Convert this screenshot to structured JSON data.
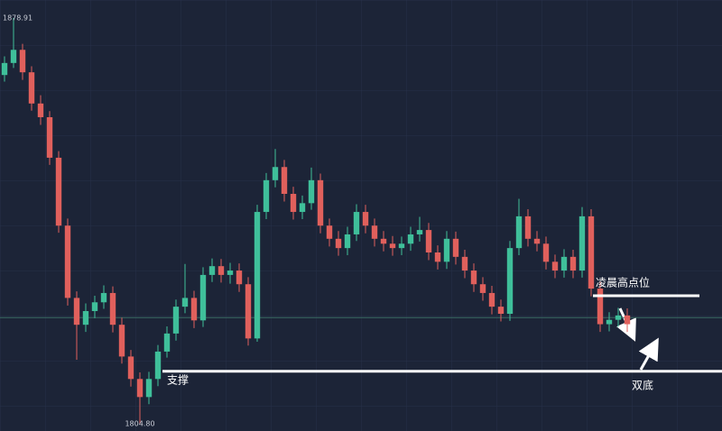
{
  "chart_data": {
    "type": "candlestick",
    "ylim": [
      1803.5,
      1882.2
    ],
    "up_color": "#3fbf9a",
    "down_color": "#e0605c",
    "candles": [
      [
        1868.5,
        1871.9,
        1867.3,
        1870.7
      ],
      [
        1870.7,
        1878.91,
        1869.8,
        1873.1
      ],
      [
        1873.1,
        1874.2,
        1867.6,
        1869.0
      ],
      [
        1869.0,
        1870.1,
        1862.0,
        1863.3
      ],
      [
        1863.3,
        1864.8,
        1859.4,
        1860.8
      ],
      [
        1860.8,
        1861.9,
        1852.1,
        1853.4
      ],
      [
        1853.4,
        1854.6,
        1839.7,
        1841.0
      ],
      [
        1841.0,
        1842.3,
        1826.4,
        1827.8
      ],
      [
        1827.8,
        1829.0,
        1816.5,
        1822.9
      ],
      [
        1822.9,
        1826.8,
        1821.6,
        1825.4
      ],
      [
        1825.4,
        1828.2,
        1824.1,
        1827.0
      ],
      [
        1827.0,
        1830.1,
        1825.8,
        1828.7
      ],
      [
        1828.7,
        1829.9,
        1821.5,
        1822.9
      ],
      [
        1822.9,
        1824.2,
        1815.8,
        1817.1
      ],
      [
        1817.1,
        1818.3,
        1811.6,
        1813.0
      ],
      [
        1813.0,
        1814.2,
        1804.8,
        1809.7
      ],
      [
        1809.7,
        1814.3,
        1808.4,
        1813.0
      ],
      [
        1813.0,
        1819.2,
        1811.7,
        1818.0
      ],
      [
        1818.0,
        1822.6,
        1816.9,
        1821.3
      ],
      [
        1821.3,
        1827.5,
        1820.0,
        1826.2
      ],
      [
        1826.2,
        1834.0,
        1825.0,
        1827.8
      ],
      [
        1827.8,
        1829.1,
        1822.3,
        1823.7
      ],
      [
        1823.7,
        1833.4,
        1822.5,
        1832.0
      ],
      [
        1832.0,
        1835.0,
        1830.7,
        1833.6
      ],
      [
        1833.6,
        1834.9,
        1830.6,
        1832.0
      ],
      [
        1832.0,
        1834.2,
        1830.4,
        1832.8
      ],
      [
        1832.8,
        1834.1,
        1828.9,
        1830.3
      ],
      [
        1830.3,
        1831.6,
        1819.1,
        1820.4
      ],
      [
        1820.4,
        1844.8,
        1819.8,
        1843.5
      ],
      [
        1843.5,
        1850.6,
        1842.2,
        1849.3
      ],
      [
        1849.3,
        1855.0,
        1848.0,
        1851.7
      ],
      [
        1851.7,
        1853.0,
        1845.4,
        1846.8
      ],
      [
        1846.8,
        1848.1,
        1842.1,
        1843.5
      ],
      [
        1843.5,
        1846.5,
        1842.2,
        1845.1
      ],
      [
        1845.1,
        1851.6,
        1843.9,
        1849.3
      ],
      [
        1849.3,
        1850.5,
        1839.6,
        1841.0
      ],
      [
        1841.0,
        1842.3,
        1837.2,
        1838.6
      ],
      [
        1838.6,
        1840.0,
        1835.5,
        1836.9
      ],
      [
        1836.9,
        1840.8,
        1835.6,
        1839.4
      ],
      [
        1839.4,
        1844.9,
        1838.2,
        1843.5
      ],
      [
        1843.5,
        1844.8,
        1839.6,
        1841.0
      ],
      [
        1841.0,
        1842.3,
        1837.2,
        1838.6
      ],
      [
        1838.6,
        1840.0,
        1836.3,
        1837.7
      ],
      [
        1837.7,
        1839.1,
        1835.5,
        1836.9
      ],
      [
        1836.9,
        1839.0,
        1835.6,
        1837.7
      ],
      [
        1837.7,
        1840.8,
        1836.4,
        1839.4
      ],
      [
        1839.4,
        1842.6,
        1838.1,
        1840.2
      ],
      [
        1840.2,
        1841.5,
        1834.7,
        1836.1
      ],
      [
        1836.1,
        1837.4,
        1833.0,
        1834.4
      ],
      [
        1834.4,
        1840.0,
        1833.1,
        1838.6
      ],
      [
        1838.6,
        1839.9,
        1833.9,
        1835.3
      ],
      [
        1835.3,
        1836.6,
        1831.4,
        1832.8
      ],
      [
        1832.8,
        1834.1,
        1828.9,
        1830.3
      ],
      [
        1830.3,
        1831.6,
        1827.3,
        1828.7
      ],
      [
        1828.7,
        1830.0,
        1824.8,
        1826.2
      ],
      [
        1826.2,
        1827.5,
        1823.5,
        1824.9
      ],
      [
        1824.9,
        1838.2,
        1823.6,
        1836.9
      ],
      [
        1836.9,
        1845.9,
        1835.6,
        1842.7
      ],
      [
        1842.7,
        1844.0,
        1837.2,
        1838.6
      ],
      [
        1838.6,
        1840.0,
        1836.3,
        1837.7
      ],
      [
        1837.7,
        1839.0,
        1833.0,
        1834.4
      ],
      [
        1834.4,
        1835.7,
        1831.4,
        1832.8
      ],
      [
        1832.8,
        1836.7,
        1831.5,
        1835.3
      ],
      [
        1835.3,
        1836.6,
        1831.4,
        1832.8
      ],
      [
        1832.8,
        1844.4,
        1831.5,
        1842.7
      ],
      [
        1842.7,
        1844.0,
        1828.1,
        1829.5
      ],
      [
        1829.5,
        1830.8,
        1821.6,
        1823.0
      ],
      [
        1823.0,
        1825.2,
        1821.7,
        1823.8
      ],
      [
        1823.8,
        1826.0,
        1822.5,
        1824.6
      ],
      [
        1824.6,
        1825.9,
        1821.6,
        1823.0
      ]
    ],
    "markers": [
      {
        "label": "1878.91",
        "value": 1878.91,
        "candle": 1
      },
      {
        "label": "1804.80",
        "value": 1804.8,
        "candle": 15
      }
    ],
    "price_line": 1824.2,
    "levels": [
      {
        "label": "支撑",
        "value": 1814.4
      },
      {
        "label": "凌晨高点位",
        "value": 1828.2
      }
    ],
    "annotation": "双底"
  }
}
